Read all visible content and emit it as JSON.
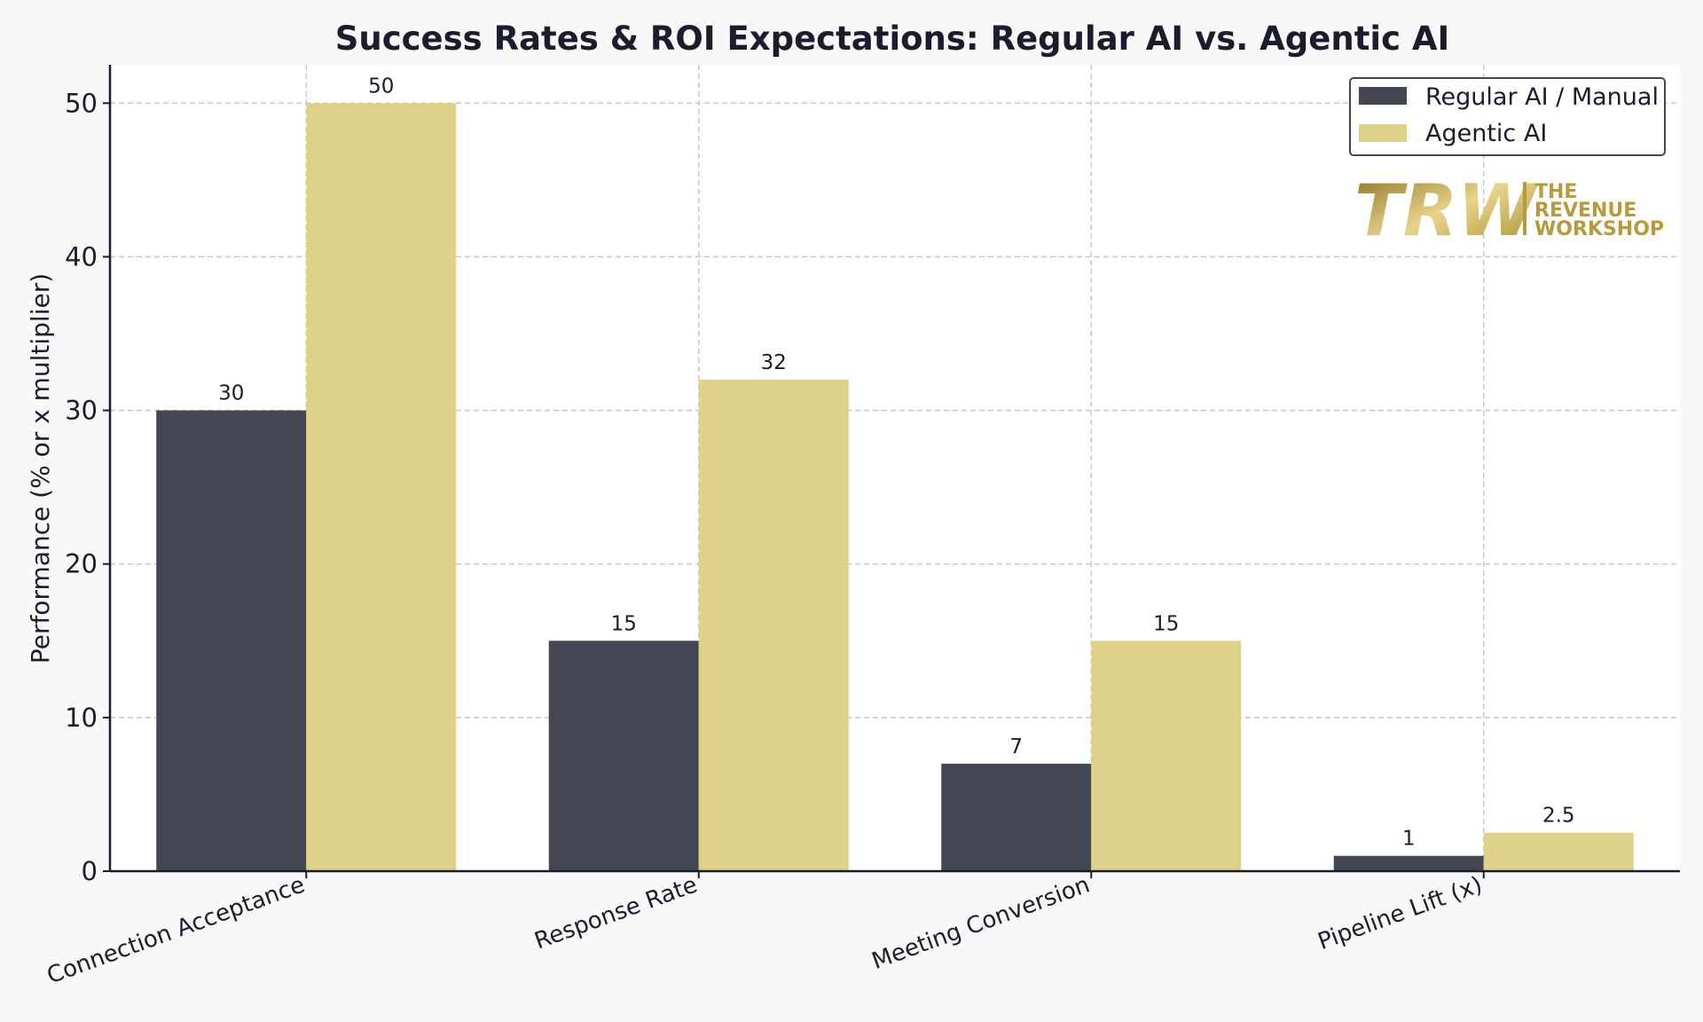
{
  "colors": {
    "regular": "#434653",
    "agentic": "#dfd189",
    "grid": "#c8c8c8",
    "axis": "#1b1c2e",
    "logo_gold": "#b99a3a"
  },
  "logo": {
    "mark": "TRW",
    "lines": [
      "THE",
      "REVENUE",
      "WORKSHOP"
    ]
  },
  "chart_data": {
    "type": "bar",
    "title": "Success Rates & ROI Expectations: Regular AI vs. Agentic AI",
    "xlabel": "",
    "ylabel": "Performance (% or x multiplier)",
    "ylim": [
      0,
      52.5
    ],
    "yticks": [
      0,
      10,
      20,
      30,
      40,
      50
    ],
    "grid": true,
    "legend_position": "top-right",
    "categories": [
      "Connection Acceptance",
      "Response Rate",
      "Meeting Conversion",
      "Pipeline Lift (x)"
    ],
    "series": [
      {
        "name": "Regular AI / Manual",
        "values": [
          30,
          15,
          7,
          1
        ],
        "labels": [
          "30",
          "15",
          "7",
          "1"
        ]
      },
      {
        "name": "Agentic AI",
        "values": [
          50,
          32,
          15,
          2.5
        ],
        "labels": [
          "50",
          "32",
          "15",
          "2.5"
        ]
      }
    ]
  }
}
